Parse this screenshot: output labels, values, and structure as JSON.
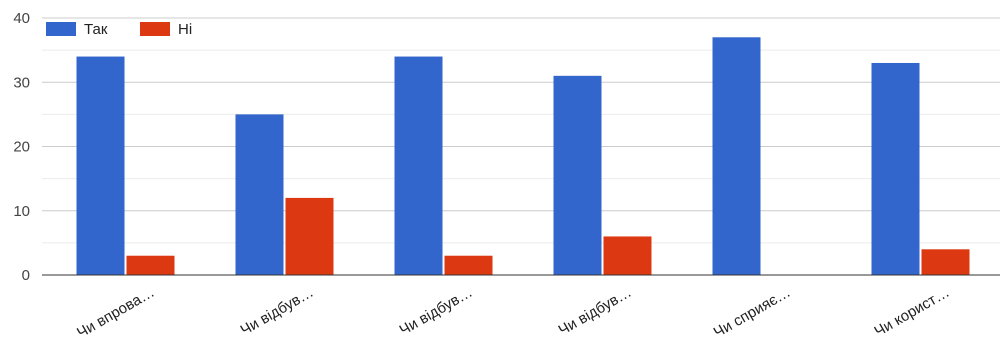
{
  "chart_data": {
    "type": "bar",
    "categories": [
      "Чи впрова…",
      "Чи відбув…",
      "Чи відбув…",
      "Чи відбув…",
      "Чи сприяє…",
      "Чи корист…"
    ],
    "series": [
      {
        "name": "Так",
        "color": "#3366cc",
        "values": [
          34,
          25,
          34,
          31,
          37,
          33
        ]
      },
      {
        "name": "Ні",
        "color": "#dc3912",
        "values": [
          3,
          12,
          3,
          6,
          0,
          4
        ]
      }
    ],
    "ylim": [
      0,
      40
    ],
    "yticks": [
      0,
      10,
      20,
      30,
      40
    ],
    "grid": true,
    "legend_position": "top-left"
  }
}
